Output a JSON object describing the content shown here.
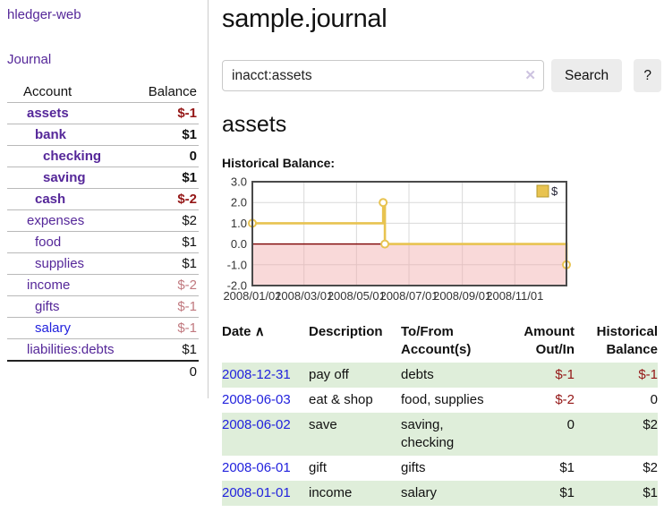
{
  "sidebar": {
    "brand": "hledger-web",
    "journal_link": "Journal",
    "accounts_table": {
      "col_account": "Account",
      "col_balance": "Balance",
      "rows": [
        {
          "name": "assets",
          "depth": 1,
          "balance": "$-1",
          "bold": true,
          "balance_style": "negative-strong"
        },
        {
          "name": "bank",
          "depth": 2,
          "balance": "$1",
          "bold": true,
          "balance_style": "normal"
        },
        {
          "name": "checking",
          "depth": 3,
          "balance": "0",
          "bold": true,
          "balance_style": "normal"
        },
        {
          "name": "saving",
          "depth": 3,
          "balance": "$1",
          "bold": true,
          "balance_style": "normal"
        },
        {
          "name": "cash",
          "depth": 2,
          "balance": "$-2",
          "bold": true,
          "balance_style": "negative-strong"
        },
        {
          "name": "expenses",
          "depth": 1,
          "balance": "$2",
          "bold": false,
          "balance_style": "normal"
        },
        {
          "name": "food",
          "depth": 2,
          "balance": "$1",
          "bold": false,
          "balance_style": "normal"
        },
        {
          "name": "supplies",
          "depth": 2,
          "balance": "$1",
          "bold": false,
          "balance_style": "normal"
        },
        {
          "name": "income",
          "depth": 1,
          "balance": "$-2",
          "bold": false,
          "balance_style": "negative-faded"
        },
        {
          "name": "gifts",
          "depth": 2,
          "balance": "$-1",
          "bold": false,
          "balance_style": "negative-faded"
        },
        {
          "name": "salary",
          "depth": 2,
          "balance": "$-1",
          "bold": false,
          "balance_style": "negative-faded",
          "link_color": "blue"
        },
        {
          "name": "liabilities:debts",
          "depth": 1,
          "balance": "$1",
          "bold": false,
          "balance_style": "normal"
        }
      ],
      "total": "0"
    }
  },
  "header": {
    "title": "sample.journal"
  },
  "search": {
    "query": "inacct:assets",
    "clear_icon": "✕",
    "search_button": "Search",
    "help_button": "?"
  },
  "account_page": {
    "heading": "assets",
    "chart_label": "Historical Balance:"
  },
  "chart_data": {
    "type": "line",
    "title": "Historical Balance",
    "step": "after",
    "series": [
      {
        "name": "$",
        "color": "#e8c350",
        "points": [
          [
            "2008-01-01",
            1.0
          ],
          [
            "2008-06-01",
            2.0
          ],
          [
            "2008-06-03",
            0.0
          ],
          [
            "2008-12-31",
            -1.0
          ]
        ]
      }
    ],
    "x_domain": [
      "2008-01-01",
      "2008-12-31"
    ],
    "ylim": [
      -2.0,
      3.0
    ],
    "yticks": [
      3.0,
      2.0,
      1.0,
      0.0,
      -1.0,
      -2.0
    ],
    "xticks": [
      "2008/01/01",
      "2008/03/01",
      "2008/05/01",
      "2008/07/01",
      "2008/09/01",
      "2008/11/01"
    ],
    "legend": [
      {
        "label": "$",
        "swatch": "#e8c350"
      }
    ],
    "legend_position": "top-right",
    "grid": true,
    "grid_color": "#d9d9d9",
    "border_color": "#4a4a4a",
    "zero_line_color": "#7d0000",
    "negative_fill": "rgba(242,170,170,0.45)",
    "legend_swatch_border": "#b6982c",
    "tick_color": "#333333"
  },
  "register": {
    "columns": {
      "date": "Date",
      "sort_icon": "∧",
      "description": "Description",
      "accounts": "To/From Account(s)",
      "amount": "Amount Out/In",
      "balance": "Historical Balance"
    },
    "rows": [
      {
        "date": "2008-12-31",
        "description": "pay off",
        "accounts": "debts",
        "amount": "$-1",
        "balance": "$-1",
        "shaded": true
      },
      {
        "date": "2008-06-03",
        "description": "eat & shop",
        "accounts": "food, supplies",
        "amount": "$-2",
        "balance": "0",
        "shaded": false
      },
      {
        "date": "2008-06-02",
        "description": "save",
        "accounts": "saving, checking",
        "amount": "0",
        "balance": "$2",
        "shaded": true
      },
      {
        "date": "2008-06-01",
        "description": "gift",
        "accounts": "gifts",
        "amount": "$1",
        "balance": "$2",
        "shaded": false
      },
      {
        "date": "2008-01-01",
        "description": "income",
        "accounts": "salary",
        "amount": "$1",
        "balance": "$1",
        "shaded": true
      }
    ]
  },
  "colors": {
    "accent_purple": "#552799",
    "link_blue": "#2222dd",
    "negative_strong": "#941616",
    "negative_faded": "#c1797f",
    "row_stripe_green": "#dfeeda",
    "chart_gold": "#e8c350"
  }
}
